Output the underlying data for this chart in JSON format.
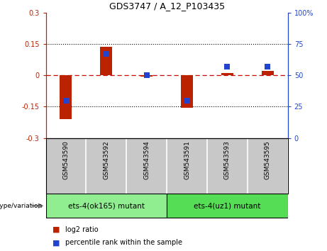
{
  "title": "GDS3747 / A_12_P103435",
  "samples": [
    "GSM543590",
    "GSM543592",
    "GSM543594",
    "GSM543591",
    "GSM543593",
    "GSM543595"
  ],
  "log2_ratio": [
    -0.21,
    0.135,
    -0.005,
    -0.155,
    0.01,
    0.02
  ],
  "percentile_rank": [
    30,
    67,
    50,
    30,
    57,
    57
  ],
  "groups": [
    {
      "label": "ets-4(ok165) mutant",
      "samples": [
        0,
        1,
        2
      ],
      "color": "#90ee90"
    },
    {
      "label": "ets-4(uz1) mutant",
      "samples": [
        3,
        4,
        5
      ],
      "color": "#55dd55"
    }
  ],
  "ylim_left": [
    -0.3,
    0.3
  ],
  "ylim_right": [
    0,
    100
  ],
  "yticks_left": [
    -0.3,
    -0.15,
    0,
    0.15,
    0.3
  ],
  "yticks_right": [
    0,
    25,
    50,
    75,
    100
  ],
  "bar_color": "#bb2200",
  "dot_color": "#2244cc",
  "zero_line_color": "#cc0000",
  "background_label": "#c8c8c8",
  "legend_log2": "log2 ratio",
  "legend_pct": "percentile rank within the sample",
  "bar_width": 0.3
}
